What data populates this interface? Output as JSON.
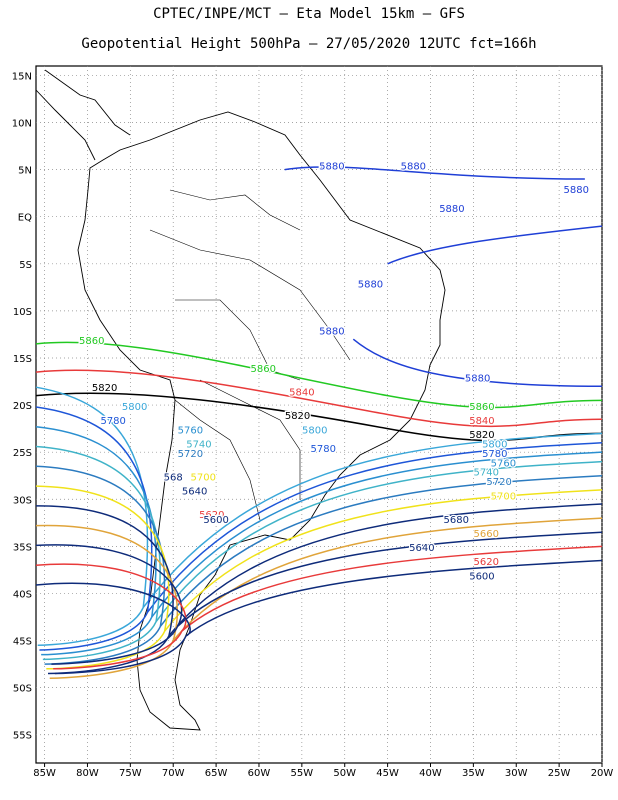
{
  "header": {
    "line1": "CPTEC/INPE/MCT –  Eta Model 15km – GFS",
    "line2": "Geopotential Height 500hPa – 27/05/2020 12UTC fct=166h"
  },
  "axes": {
    "lon_ticks": [
      "85W",
      "80W",
      "75W",
      "70W",
      "65W",
      "60W",
      "55W",
      "50W",
      "45W",
      "40W",
      "35W",
      "30W",
      "25W",
      "20W"
    ],
    "lat_ticks": [
      "15N",
      "10N",
      "5N",
      "EQ",
      "5S",
      "10S",
      "15S",
      "20S",
      "25S",
      "30S",
      "35S",
      "40S",
      "45S",
      "50S",
      "55S"
    ]
  },
  "chart_data": {
    "type": "contour",
    "variable": "Geopotential Height 500hPa",
    "lon_range": [
      -86,
      -20
    ],
    "lat_range": [
      -58,
      16
    ],
    "grid": true,
    "contour_levels": [
      {
        "value": 5880,
        "color": "#1f3fd6"
      },
      {
        "value": 5860,
        "color": "#22c922"
      },
      {
        "value": 5840,
        "color": "#e83a3a"
      },
      {
        "value": 5820,
        "color": "#000000"
      },
      {
        "value": 5800,
        "color": "#3aa7d9"
      },
      {
        "value": 5780,
        "color": "#1e56d8"
      },
      {
        "value": 5760,
        "color": "#2a8fd0"
      },
      {
        "value": 5740,
        "color": "#3fb3c8"
      },
      {
        "value": 5720,
        "color": "#2b7bc0"
      },
      {
        "value": 5700,
        "color": "#f0e21a"
      },
      {
        "value": 5680,
        "color": "#0e2b7a"
      },
      {
        "value": 5660,
        "color": "#e0a43a"
      },
      {
        "value": 5640,
        "color": "#0e2b7a"
      },
      {
        "value": 5620,
        "color": "#e83a3a"
      },
      {
        "value": 5600,
        "color": "#0e2b7a"
      }
    ],
    "labels": [
      {
        "text": "5880",
        "lon": -51.5,
        "lat": 5.0,
        "color": "#1f3fd6"
      },
      {
        "text": "5880",
        "lon": -42.0,
        "lat": 5.0,
        "color": "#1f3fd6"
      },
      {
        "text": "5880",
        "lon": -23.0,
        "lat": 2.5,
        "color": "#1f3fd6"
      },
      {
        "text": "5880",
        "lon": -37.5,
        "lat": 0.5,
        "color": "#1f3fd6"
      },
      {
        "text": "5880",
        "lon": -47.0,
        "lat": -7.5,
        "color": "#1f3fd6"
      },
      {
        "text": "5880",
        "lon": -51.5,
        "lat": -12.5,
        "color": "#1f3fd6"
      },
      {
        "text": "5880",
        "lon": -34.5,
        "lat": -17.5,
        "color": "#1f3fd6"
      },
      {
        "text": "5860",
        "lon": -79.5,
        "lat": -13.5,
        "color": "#22c922"
      },
      {
        "text": "5860",
        "lon": -59.5,
        "lat": -16.5,
        "color": "#22c922"
      },
      {
        "text": "5860",
        "lon": -34.0,
        "lat": -20.5,
        "color": "#22c922"
      },
      {
        "text": "5840",
        "lon": -55.0,
        "lat": -19.0,
        "color": "#e83a3a"
      },
      {
        "text": "5840",
        "lon": -34.0,
        "lat": -22.0,
        "color": "#e83a3a"
      },
      {
        "text": "5820",
        "lon": -78.0,
        "lat": -18.5,
        "color": "#000000"
      },
      {
        "text": "5820",
        "lon": -55.5,
        "lat": -21.5,
        "color": "#000000"
      },
      {
        "text": "5820",
        "lon": -34.0,
        "lat": -23.5,
        "color": "#000000"
      },
      {
        "text": "5800",
        "lon": -74.5,
        "lat": -20.5,
        "color": "#3aa7d9"
      },
      {
        "text": "5800",
        "lon": -53.5,
        "lat": -23.0,
        "color": "#3aa7d9"
      },
      {
        "text": "5800",
        "lon": -32.5,
        "lat": -24.5,
        "color": "#3aa7d9"
      },
      {
        "text": "5780",
        "lon": -77.0,
        "lat": -22.0,
        "color": "#1e56d8"
      },
      {
        "text": "5780",
        "lon": -52.5,
        "lat": -25.0,
        "color": "#1e56d8"
      },
      {
        "text": "5780",
        "lon": -32.5,
        "lat": -25.5,
        "color": "#1e56d8"
      },
      {
        "text": "5760",
        "lon": -68.0,
        "lat": -23.0,
        "color": "#2a8fd0"
      },
      {
        "text": "5760",
        "lon": -31.5,
        "lat": -26.5,
        "color": "#2a8fd0"
      },
      {
        "text": "5740",
        "lon": -67.0,
        "lat": -24.5,
        "color": "#3fb3c8"
      },
      {
        "text": "5740",
        "lon": -33.5,
        "lat": -27.5,
        "color": "#3fb3c8"
      },
      {
        "text": "5720",
        "lon": -68.0,
        "lat": -25.5,
        "color": "#2b7bc0"
      },
      {
        "text": "5720",
        "lon": -32.0,
        "lat": -28.5,
        "color": "#2b7bc0"
      },
      {
        "text": "5700",
        "lon": -66.5,
        "lat": -28.0,
        "color": "#f0e21a"
      },
      {
        "text": "5700",
        "lon": -31.5,
        "lat": -30.0,
        "color": "#f0e21a"
      },
      {
        "text": "568",
        "lon": -70.0,
        "lat": -28.0,
        "color": "#0e2b7a"
      },
      {
        "text": "5680",
        "lon": -37.0,
        "lat": -32.5,
        "color": "#0e2b7a"
      },
      {
        "text": "5660",
        "lon": -33.5,
        "lat": -34.0,
        "color": "#e0a43a"
      },
      {
        "text": "5640",
        "lon": -67.5,
        "lat": -29.5,
        "color": "#0e2b7a"
      },
      {
        "text": "5640",
        "lon": -41.0,
        "lat": -35.5,
        "color": "#0e2b7a"
      },
      {
        "text": "5620",
        "lon": -65.5,
        "lat": -32.0,
        "color": "#e83a3a"
      },
      {
        "text": "5620",
        "lon": -33.5,
        "lat": -37.0,
        "color": "#e83a3a"
      },
      {
        "text": "5600",
        "lon": -65.0,
        "lat": -32.5,
        "color": "#0e2b7a"
      },
      {
        "text": "5600",
        "lon": -34.0,
        "lat": -38.5,
        "color": "#0e2b7a"
      }
    ]
  }
}
